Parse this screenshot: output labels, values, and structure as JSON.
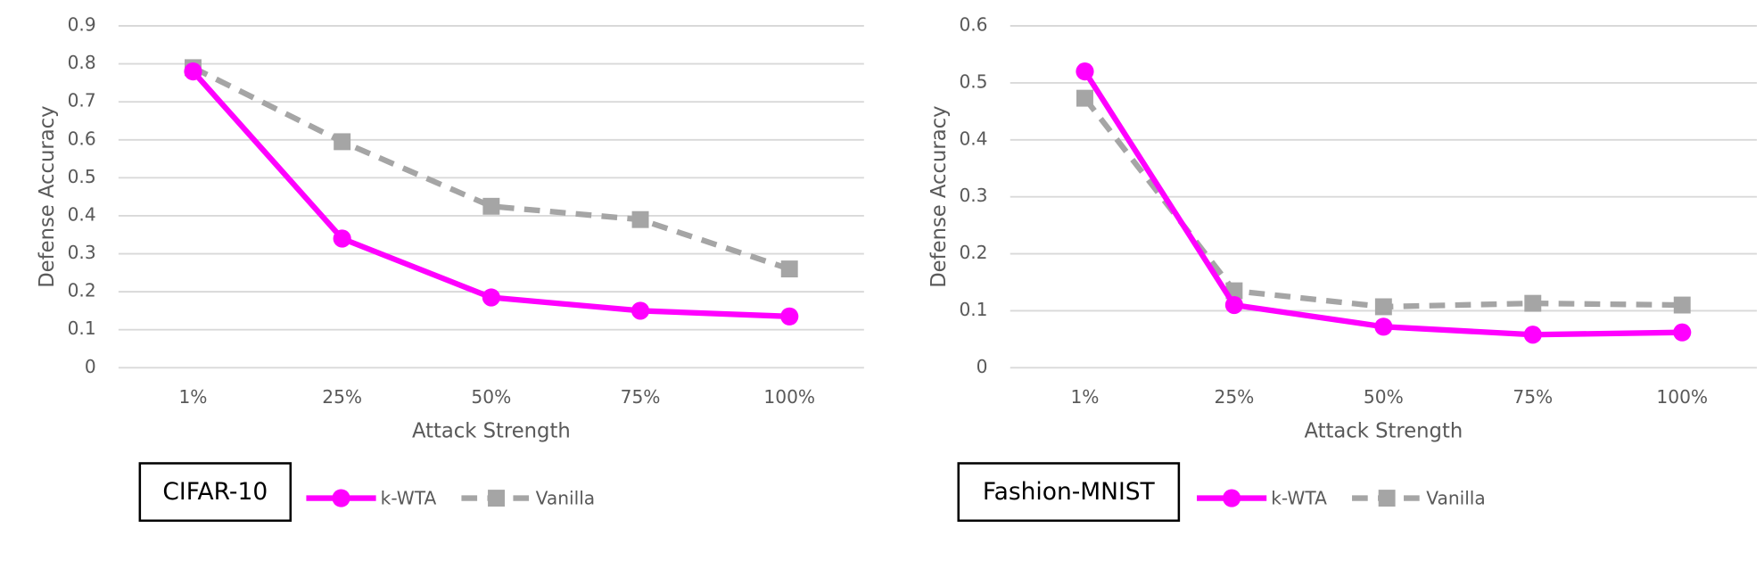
{
  "chart_data": [
    {
      "type": "line",
      "title": "CIFAR-10",
      "x_label": "Attack Strength",
      "y_label": "Defense Accuracy",
      "categories": [
        "1%",
        "25%",
        "50%",
        "75%",
        "100%"
      ],
      "series": [
        {
          "name": "k-WTA",
          "color": "#ff00ff",
          "marker": "circle",
          "dashed": false,
          "values": [
            0.78,
            0.34,
            0.185,
            0.15,
            0.135
          ]
        },
        {
          "name": "Vanilla",
          "color": "#a5a5a5",
          "marker": "square",
          "dashed": true,
          "values": [
            0.79,
            0.595,
            0.425,
            0.39,
            0.26
          ]
        }
      ],
      "ylim": [
        0,
        0.9
      ],
      "yticks": [
        0,
        0.1,
        0.2,
        0.3,
        0.4,
        0.5,
        0.6,
        0.7,
        0.8,
        0.9
      ],
      "grid": true
    },
    {
      "type": "line",
      "title": "Fashion-MNIST",
      "x_label": "Attack Strength",
      "y_label": "Defense Accuracy",
      "categories": [
        "1%",
        "25%",
        "50%",
        "75%",
        "100%"
      ],
      "series": [
        {
          "name": "k-WTA",
          "color": "#ff00ff",
          "marker": "circle",
          "dashed": false,
          "values": [
            0.52,
            0.11,
            0.072,
            0.058,
            0.062
          ]
        },
        {
          "name": "Vanilla",
          "color": "#a5a5a5",
          "marker": "square",
          "dashed": true,
          "values": [
            0.473,
            0.135,
            0.107,
            0.113,
            0.11
          ]
        }
      ],
      "ylim": [
        0,
        0.6
      ],
      "yticks": [
        0,
        0.1,
        0.2,
        0.3,
        0.4,
        0.5,
        0.6
      ],
      "grid": true
    }
  ]
}
